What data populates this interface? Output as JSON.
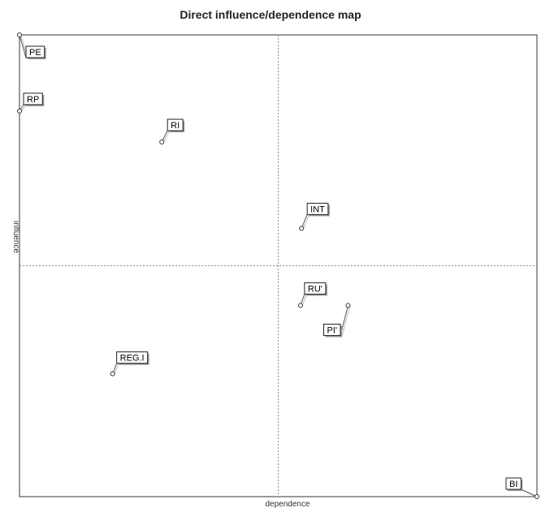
{
  "chart_data": {
    "type": "scatter",
    "title": "Direct influence/dependence map",
    "xlabel": "dependence",
    "ylabel": "influence",
    "xlim": [
      0,
      100
    ],
    "ylim": [
      0,
      100
    ],
    "divider": {
      "x": 50,
      "y": 50
    },
    "grid": false,
    "points": [
      {
        "label": "PE",
        "x": 0.0,
        "y": 100.0
      },
      {
        "label": "RP",
        "x": 0.0,
        "y": 83.5
      },
      {
        "label": "RI",
        "x": 27.5,
        "y": 76.8
      },
      {
        "label": "INT",
        "x": 54.5,
        "y": 58.1
      },
      {
        "label": "RU'",
        "x": 54.3,
        "y": 41.4
      },
      {
        "label": "PI'",
        "x": 63.5,
        "y": 41.4
      },
      {
        "label": "REG.I",
        "x": 18.0,
        "y": 26.6
      },
      {
        "label": "BI",
        "x": 100.0,
        "y": 0.0
      }
    ]
  }
}
